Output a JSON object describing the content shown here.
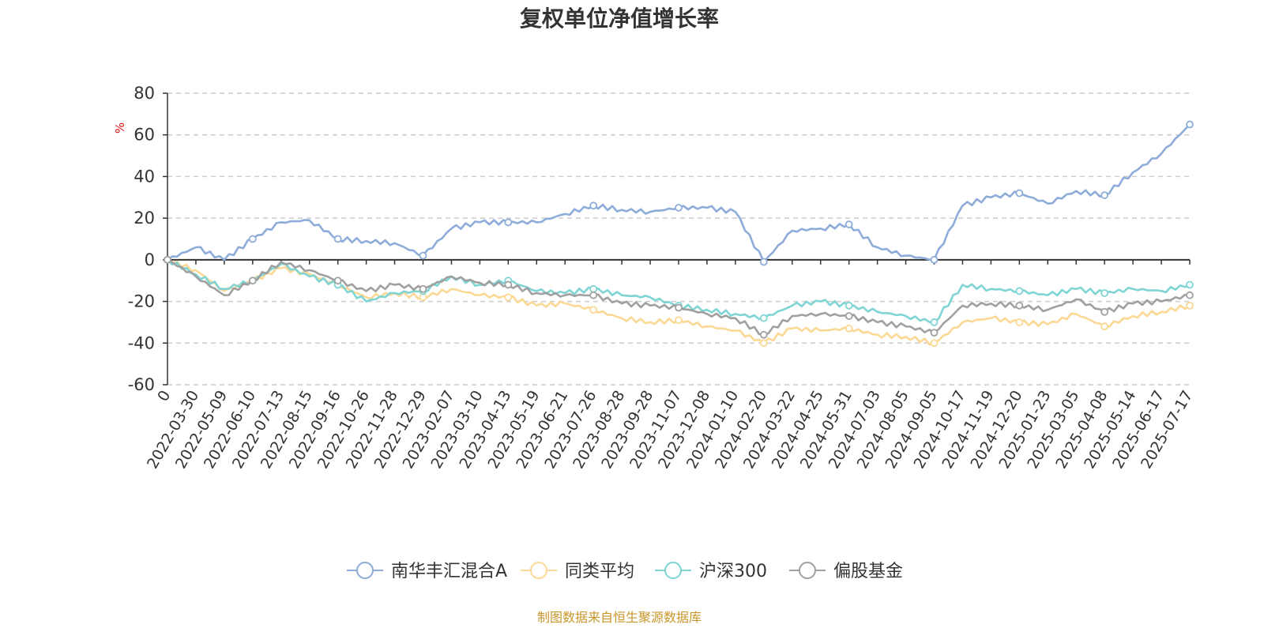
{
  "chart_data": {
    "type": "line",
    "title": "复权单位净值增长率",
    "ylabel": "%",
    "ylim": [
      -60,
      80
    ],
    "yticks": [
      -60,
      -40,
      -20,
      0,
      20,
      40,
      60,
      80
    ],
    "grid": true,
    "legend_position": "bottom",
    "x_start_label": "0",
    "x": [
      "2022-03-30",
      "2022-05-09",
      "2022-06-10",
      "2022-07-13",
      "2022-08-15",
      "2022-09-16",
      "2022-10-26",
      "2022-11-28",
      "2022-12-29",
      "2023-02-07",
      "2023-03-10",
      "2023-04-13",
      "2023-05-19",
      "2023-06-21",
      "2023-07-26",
      "2023-08-28",
      "2023-09-28",
      "2023-11-07",
      "2023-12-08",
      "2024-01-10",
      "2024-02-20",
      "2024-03-22",
      "2024-04-25",
      "2024-05-31",
      "2024-07-03",
      "2024-08-05",
      "2024-09-05",
      "2024-10-17",
      "2024-11-19",
      "2024-12-20",
      "2025-01-23",
      "2025-03-05",
      "2025-04-08",
      "2025-05-14",
      "2025-06-17",
      "2025-07-17"
    ],
    "series": [
      {
        "name": "南华丰汇混合A",
        "color": "#8eacd9",
        "start": 0,
        "values": [
          6,
          0,
          10,
          18,
          19,
          10,
          9,
          8,
          2,
          15,
          18,
          18,
          18,
          22,
          26,
          24,
          23,
          25,
          25,
          23,
          -1,
          14,
          15,
          17,
          6,
          2,
          0,
          26,
          30,
          32,
          27,
          33,
          31,
          42,
          51,
          65
        ]
      },
      {
        "name": "同类平均",
        "color": "#fbd894",
        "start": 0,
        "values": [
          -5,
          -15,
          -10,
          -4,
          -7,
          -12,
          -18,
          -16,
          -18,
          -14,
          -17,
          -18,
          -22,
          -21,
          -24,
          -28,
          -30,
          -29,
          -32,
          -34,
          -40,
          -33,
          -34,
          -33,
          -36,
          -37,
          -40,
          -30,
          -28,
          -30,
          -31,
          -26,
          -32,
          -27,
          -25,
          -22
        ]
      },
      {
        "name": "沪深300",
        "color": "#7fd4d4",
        "start": 0,
        "values": [
          -7,
          -14,
          -10,
          -2,
          -8,
          -12,
          -20,
          -16,
          -15,
          -8,
          -12,
          -10,
          -15,
          -16,
          -14,
          -17,
          -18,
          -22,
          -24,
          -26,
          -28,
          -22,
          -20,
          -22,
          -25,
          -27,
          -30,
          -12,
          -14,
          -15,
          -17,
          -14,
          -16,
          -14,
          -15,
          -12
        ]
      },
      {
        "name": "偏股基金",
        "color": "#a0a0a0",
        "start": 0,
        "values": [
          -8,
          -17,
          -10,
          -1,
          -5,
          -10,
          -15,
          -12,
          -14,
          -8,
          -11,
          -12,
          -16,
          -17,
          -17,
          -21,
          -22,
          -23,
          -26,
          -28,
          -36,
          -27,
          -26,
          -27,
          -30,
          -32,
          -35,
          -22,
          -21,
          -22,
          -24,
          -19,
          -25,
          -21,
          -20,
          -17
        ]
      }
    ]
  },
  "source_text": "制图数据来自恒生聚源数据库"
}
